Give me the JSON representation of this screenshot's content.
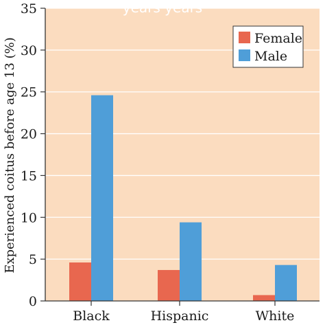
{
  "chart_data": {
    "type": "bar",
    "categories": [
      "Black",
      "Hispanic",
      "White"
    ],
    "series": [
      {
        "name": "Female",
        "values": [
          4.6,
          3.7,
          0.7
        ],
        "color": "#e8674f"
      },
      {
        "name": "Male",
        "values": [
          24.6,
          9.4,
          4.3
        ],
        "color": "#4f9ed8"
      }
    ],
    "ylabel": "Experienced coitus before age 13 (%)",
    "xlabel": "",
    "ylim": [
      0,
      35
    ],
    "yticks": [
      0,
      5,
      10,
      15,
      20,
      25,
      30,
      35
    ],
    "grid": true,
    "legend_position": "top-right",
    "plot_background": "#fbdcbf",
    "grid_color": "#ffffff",
    "partial_text": "years years"
  }
}
